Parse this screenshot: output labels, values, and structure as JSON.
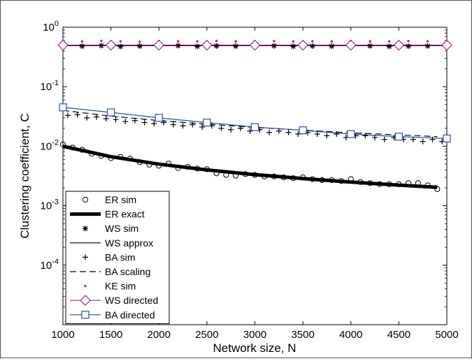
{
  "chart_data": {
    "type": "line",
    "xlabel": "Network size, N",
    "ylabel": "Clustering coefficient, C",
    "xlim": [
      1000,
      5000
    ],
    "ylim": [
      1e-05,
      1
    ],
    "yscale": "log",
    "grid": false,
    "legend_position": "bottom-left",
    "x_ticks": [
      1000,
      1500,
      2000,
      2500,
      3000,
      3500,
      4000,
      4500,
      5000
    ],
    "x_tick_labels": [
      "1000",
      "1500",
      "2000",
      "2500",
      "3000",
      "3500",
      "4000",
      "4500",
      "5000"
    ],
    "y_ticks": [
      {
        "value": 1,
        "base": "10",
        "exp": "0"
      },
      {
        "value": 0.1,
        "base": "10",
        "exp": "-1"
      },
      {
        "value": 0.01,
        "base": "10",
        "exp": "-2"
      },
      {
        "value": 0.001,
        "base": "10",
        "exp": "-3"
      },
      {
        "value": 0.0001,
        "base": "10",
        "exp": "-4"
      }
    ],
    "series": [
      {
        "name": "ER sim",
        "marker": "open-circle",
        "color": "#000000",
        "x": [
          1000,
          1100,
          1200,
          1300,
          1400,
          1500,
          1600,
          1700,
          1800,
          1900,
          2000,
          2100,
          2200,
          2300,
          2400,
          2500,
          2600,
          2700,
          2800,
          2900,
          3000,
          3100,
          3200,
          3300,
          3400,
          3500,
          3600,
          3700,
          3800,
          3900,
          4000,
          4100,
          4200,
          4300,
          4400,
          4500,
          4600,
          4700,
          4800,
          4900
        ],
        "y": [
          0.0107,
          0.0095,
          0.0087,
          0.0075,
          0.0069,
          0.0063,
          0.0066,
          0.0062,
          0.0054,
          0.0049,
          0.0047,
          0.0051,
          0.0043,
          0.0045,
          0.0042,
          0.0041,
          0.0035,
          0.0033,
          0.0032,
          0.0034,
          0.0033,
          0.0031,
          0.0031,
          0.003,
          0.0029,
          0.003,
          0.0028,
          0.0027,
          0.0027,
          0.0026,
          0.0028,
          0.0025,
          0.0024,
          0.0023,
          0.0023,
          0.0023,
          0.0024,
          0.0024,
          0.0022,
          0.0019
        ]
      },
      {
        "name": "ER exact",
        "style": "thick-line",
        "color": "#000000",
        "x": [
          1000,
          1500,
          2000,
          2500,
          3000,
          3500,
          4000,
          4500,
          4900
        ],
        "y": [
          0.01,
          0.00667,
          0.005,
          0.004,
          0.00333,
          0.00286,
          0.0025,
          0.00222,
          0.00204
        ]
      },
      {
        "name": "WS sim",
        "marker": "asterisk",
        "color": "#000000",
        "x": [
          1000,
          1200,
          1400,
          1600,
          1800,
          2000,
          2200,
          2400,
          2600,
          2800,
          3000,
          3200,
          3400,
          3600,
          3800,
          4000,
          4200,
          4400,
          4600,
          4800,
          5000
        ],
        "y": [
          0.485,
          0.48,
          0.49,
          0.475,
          0.482,
          0.478,
          0.49,
          0.476,
          0.484,
          0.48,
          0.479,
          0.486,
          0.477,
          0.482,
          0.48,
          0.478,
          0.485,
          0.476,
          0.48,
          0.483,
          0.479
        ]
      },
      {
        "name": "WS approx",
        "style": "thin-line",
        "color": "#000000",
        "x": [
          1000,
          5000
        ],
        "y": [
          0.49,
          0.49
        ]
      },
      {
        "name": "BA sim",
        "marker": "plus",
        "color": "#000000",
        "x": [
          1050,
          1150,
          1250,
          1350,
          1450,
          1550,
          1650,
          1750,
          1850,
          1950,
          2050,
          2150,
          2250,
          2350,
          2450,
          2550,
          2650,
          2750,
          2850,
          2950,
          3050,
          3150,
          3250,
          3350,
          3450,
          3550,
          3650,
          3750,
          3850,
          3950,
          4050,
          4150,
          4250,
          4350,
          4450,
          4550,
          4650,
          4750,
          4850,
          4950
        ],
        "y": [
          0.033,
          0.034,
          0.03,
          0.031,
          0.029,
          0.028,
          0.026,
          0.027,
          0.025,
          0.024,
          0.025,
          0.023,
          0.022,
          0.023,
          0.021,
          0.022,
          0.02,
          0.019,
          0.02,
          0.018,
          0.019,
          0.017,
          0.018,
          0.017,
          0.016,
          0.017,
          0.016,
          0.015,
          0.016,
          0.014,
          0.015,
          0.015,
          0.014,
          0.013,
          0.014,
          0.013,
          0.013,
          0.012,
          0.013,
          0.012
        ]
      },
      {
        "name": "BA scaling",
        "style": "dashed-line",
        "color": "#000000",
        "x": [
          1000,
          1500,
          2000,
          2500,
          3000,
          3500,
          4000,
          4500,
          4900
        ],
        "y": [
          0.04,
          0.032,
          0.027,
          0.0235,
          0.0207,
          0.0186,
          0.0168,
          0.0155,
          0.0145
        ]
      },
      {
        "name": "KE sim",
        "marker": "dot",
        "color": "#e8262e",
        "x": [
          1000,
          1200,
          1400,
          1600,
          1800,
          2000,
          2200,
          2400,
          2600,
          2800,
          3000,
          3200,
          3400,
          3600,
          3800,
          4000,
          4200,
          4400,
          4600,
          4800,
          5000
        ],
        "y": [
          0.58,
          0.575,
          0.59,
          0.58,
          0.57,
          0.585,
          0.58,
          0.578,
          0.59,
          0.575,
          0.58,
          0.585,
          0.578,
          0.58,
          0.575,
          0.588,
          0.58,
          0.578,
          0.585,
          0.58,
          0.575
        ]
      },
      {
        "name": "WS directed",
        "marker": "open-diamond",
        "color": "#b0208f",
        "x": [
          1000,
          1500,
          2000,
          2500,
          3000,
          3500,
          4000,
          4500,
          5000
        ],
        "y": [
          0.5,
          0.5,
          0.5,
          0.5,
          0.5,
          0.5,
          0.5,
          0.5,
          0.5
        ]
      },
      {
        "name": "BA directed",
        "marker": "open-square",
        "color": "#2b4fa6",
        "x": [
          1000,
          1500,
          2000,
          2500,
          3000,
          3500,
          4000,
          4500,
          5000
        ],
        "y": [
          0.045,
          0.037,
          0.03,
          0.025,
          0.021,
          0.0185,
          0.016,
          0.0145,
          0.0135
        ]
      }
    ]
  }
}
